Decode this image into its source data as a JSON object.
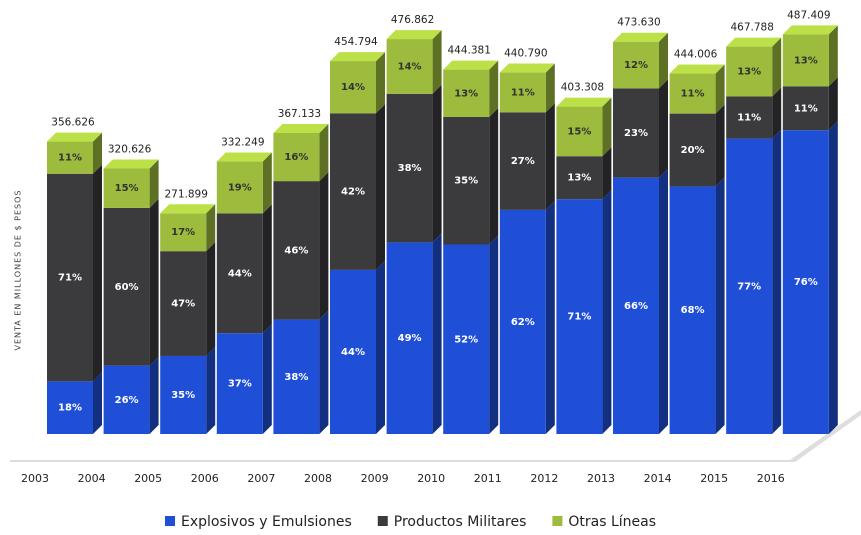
{
  "chart_data": {
    "type": "stacked-bar-3d",
    "y_label": "VENTA EN MILLONES DE $ PESOS",
    "categories": [
      "2003",
      "2004",
      "2005",
      "2006",
      "2007",
      "2008",
      "2009",
      "2010",
      "2011",
      "2012",
      "2013",
      "2014",
      "2015",
      "2016"
    ],
    "totals": {
      "values": [
        356626,
        320626,
        271899,
        332249,
        367133,
        454794,
        476862,
        444381,
        440790,
        403308,
        473630,
        444006,
        467788,
        487409
      ],
      "value_labels": [
        "356.626",
        "320.626",
        "271.899",
        "332.249",
        "367.133",
        "454.794",
        "476.862",
        "444.381",
        "440.790",
        "403.308",
        "473.630",
        "444.006",
        "467.788",
        "487.409"
      ]
    },
    "series": [
      {
        "name": "Explosivos y Emulsiones",
        "color": "#1f4fd6",
        "values": [
          18,
          26,
          35,
          37,
          38,
          44,
          49,
          52,
          62,
          71,
          66,
          68,
          77,
          76
        ],
        "value_labels": [
          "18%",
          "26%",
          "35%",
          "37%",
          "38%",
          "44%",
          "49%",
          "52%",
          "62%",
          "71%",
          "66%",
          "68%",
          "77%",
          "76%"
        ]
      },
      {
        "name": "Productos Militares",
        "color": "#3b3b3e",
        "values": [
          71,
          60,
          47,
          44,
          46,
          42,
          38,
          35,
          27,
          13,
          23,
          20,
          11,
          11
        ],
        "value_labels": [
          "71%",
          "60%",
          "47%",
          "44%",
          "46%",
          "42%",
          "38%",
          "35%",
          "27%",
          "13%",
          "23%",
          "20%",
          "11%",
          "11%"
        ]
      },
      {
        "name": "Otras Líneas",
        "color": "#9dbb3c",
        "values": [
          11,
          15,
          17,
          19,
          16,
          14,
          14,
          13,
          11,
          15,
          12,
          11,
          13,
          13
        ],
        "value_labels": [
          "11%",
          "15%",
          "17%",
          "19%",
          "16%",
          "14%",
          "14%",
          "13%",
          "11%",
          "15%",
          "12%",
          "11%",
          "13%",
          "13%"
        ]
      }
    ]
  }
}
